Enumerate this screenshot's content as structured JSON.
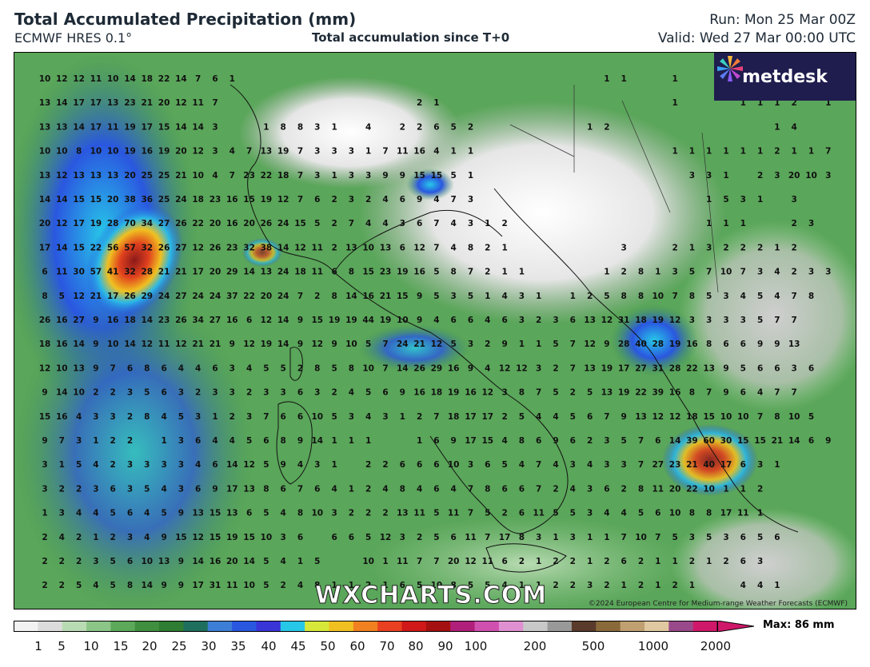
{
  "header": {
    "title": "Total Accumulated Precipitation (mm)",
    "model": "ECMWF HRES 0.1°",
    "subtitle": "Total accumulation since T+0",
    "run": "Run: Mon 25 Mar 00Z",
    "valid": "Valid: Wed 27 Mar 00:00 UTC"
  },
  "logo": {
    "text": "metdesk",
    "icon": "pinwheel-logo-icon"
  },
  "watermark": "WXCHARTS.COM",
  "copyright": "©2024 European Centre for Medium-range Weather Forecasts (ECMWF)",
  "colorbar": {
    "max_label": "Max: 86 mm",
    "ticks": [
      "1",
      "5",
      "10",
      "15",
      "20",
      "25",
      "30",
      "35",
      "40",
      "45",
      "50",
      "60",
      "70",
      "80",
      "90",
      "100",
      "200",
      "500",
      "1000",
      "2000"
    ],
    "colors": [
      "#f2f2f2",
      "#dcdcdc",
      "#b9dbb3",
      "#8cc588",
      "#5da95a",
      "#3f8f3f",
      "#2e7d32",
      "#1f6f5f",
      "#3d7fd6",
      "#2a57e0",
      "#3a35d8",
      "#27c7e8",
      "#d7e83a",
      "#f0c020",
      "#f08020",
      "#e84020",
      "#d01818",
      "#a51010",
      "#b0207a",
      "#d050b0",
      "#e090d0",
      "#c8c8c8",
      "#999999",
      "#5a3a2a",
      "#8a6a3a",
      "#c0a070",
      "#e0c8a0",
      "#9a4a8a",
      "#d0186a"
    ],
    "color_names": [
      "white",
      "light-grey",
      "light-green",
      "green",
      "mid-green",
      "dark-green",
      "teal",
      "blue",
      "deep-blue",
      "cyan",
      "yellow",
      "orange",
      "red",
      "dark-red",
      "magenta",
      "pink",
      "grey",
      "brown",
      "tan",
      "crimson"
    ]
  },
  "map": {
    "region": "Italy and the Balkans",
    "value_labels": [
      {
        "row": 1,
        "values": [
          "10",
          "12",
          "12",
          "11",
          "10",
          "14",
          "18",
          "22",
          "14",
          "7",
          "6",
          "1",
          "",
          "",
          "",
          "",
          "",
          "",
          "",
          "",
          "",
          "",
          "",
          "",
          "",
          "",
          "",
          "",
          "",
          "",
          "",
          "",
          "",
          "1",
          "1",
          "",
          "",
          "1"
        ]
      },
      {
        "row": 2,
        "values": [
          "13",
          "14",
          "17",
          "17",
          "13",
          "23",
          "21",
          "20",
          "12",
          "11",
          "7",
          "",
          "",
          "",
          "",
          "",
          "",
          "",
          "",
          "",
          "",
          "",
          "2",
          "1",
          "",
          "",
          "",
          "",
          "",
          "",
          "",
          "",
          "",
          "",
          "",
          "",
          "",
          "1",
          "",
          "",
          "",
          "1",
          "1",
          "1",
          "2",
          "",
          "1"
        ]
      },
      {
        "row": 3,
        "values": [
          "13",
          "13",
          "14",
          "17",
          "11",
          "19",
          "17",
          "15",
          "14",
          "14",
          "3",
          "",
          "",
          "1",
          "8",
          "8",
          "3",
          "1",
          "",
          "4",
          "",
          "2",
          "2",
          "6",
          "5",
          "2",
          "",
          "",
          "",
          "",
          "",
          "",
          "1",
          "2",
          "",
          "",
          "",
          "",
          "",
          "",
          "",
          "",
          "",
          "1",
          "4"
        ]
      },
      {
        "row": 4,
        "values": [
          "10",
          "10",
          "8",
          "10",
          "10",
          "19",
          "16",
          "19",
          "20",
          "12",
          "3",
          "4",
          "7",
          "13",
          "19",
          "7",
          "3",
          "3",
          "3",
          "1",
          "7",
          "11",
          "16",
          "4",
          "1",
          "1",
          "",
          "",
          "",
          "",
          "",
          "",
          "",
          "",
          "",
          "",
          "",
          "1",
          "1",
          "1",
          "1",
          "1",
          "1",
          "2",
          "1",
          "1",
          "7"
        ]
      },
      {
        "row": 5,
        "values": [
          "13",
          "12",
          "13",
          "13",
          "13",
          "20",
          "25",
          "25",
          "21",
          "10",
          "4",
          "7",
          "23",
          "22",
          "18",
          "7",
          "3",
          "1",
          "3",
          "3",
          "9",
          "9",
          "15",
          "15",
          "5",
          "1",
          "",
          "",
          "",
          "",
          "",
          "",
          "",
          "",
          "",
          "",
          "",
          "",
          "3",
          "3",
          "1",
          "",
          "2",
          "3",
          "20",
          "10",
          "3"
        ]
      },
      {
        "row": 6,
        "values": [
          "14",
          "14",
          "15",
          "15",
          "20",
          "38",
          "36",
          "25",
          "24",
          "18",
          "23",
          "16",
          "15",
          "19",
          "12",
          "7",
          "6",
          "2",
          "3",
          "2",
          "4",
          "6",
          "9",
          "4",
          "7",
          "3",
          "",
          "",
          "",
          "",
          "",
          "",
          "",
          "",
          "",
          "",
          "",
          "",
          "",
          "1",
          "5",
          "3",
          "1",
          "",
          "3"
        ]
      },
      {
        "row": 7,
        "values": [
          "20",
          "12",
          "17",
          "19",
          "28",
          "70",
          "34",
          "27",
          "26",
          "22",
          "20",
          "16",
          "20",
          "26",
          "24",
          "15",
          "5",
          "2",
          "7",
          "4",
          "4",
          "3",
          "6",
          "7",
          "4",
          "3",
          "1",
          "2",
          "",
          "",
          "",
          "",
          "",
          "",
          "",
          "",
          "",
          "",
          "",
          "1",
          "1",
          "1",
          "",
          "",
          "2",
          "3"
        ]
      },
      {
        "row": 8,
        "values": [
          "17",
          "14",
          "15",
          "22",
          "56",
          "57",
          "32",
          "26",
          "27",
          "12",
          "26",
          "23",
          "32",
          "38",
          "14",
          "12",
          "11",
          "2",
          "13",
          "10",
          "13",
          "6",
          "12",
          "7",
          "4",
          "8",
          "2",
          "1",
          "",
          "",
          "",
          "",
          "",
          "",
          "3",
          "",
          "",
          "2",
          "1",
          "3",
          "2",
          "2",
          "2",
          "1",
          "2"
        ]
      },
      {
        "row": 9,
        "values": [
          "6",
          "11",
          "30",
          "57",
          "41",
          "32",
          "28",
          "21",
          "21",
          "17",
          "20",
          "29",
          "14",
          "13",
          "24",
          "18",
          "11",
          "6",
          "8",
          "15",
          "23",
          "19",
          "16",
          "5",
          "8",
          "7",
          "2",
          "1",
          "1",
          "",
          "",
          "",
          "",
          "1",
          "2",
          "8",
          "1",
          "3",
          "5",
          "7",
          "10",
          "7",
          "3",
          "4",
          "2",
          "3",
          "3"
        ]
      },
      {
        "row": 10,
        "values": [
          "8",
          "5",
          "12",
          "21",
          "17",
          "26",
          "29",
          "24",
          "27",
          "24",
          "24",
          "37",
          "22",
          "20",
          "24",
          "7",
          "2",
          "8",
          "14",
          "16",
          "21",
          "15",
          "9",
          "5",
          "3",
          "5",
          "1",
          "4",
          "3",
          "1",
          "",
          "1",
          "2",
          "5",
          "8",
          "8",
          "10",
          "7",
          "8",
          "5",
          "3",
          "4",
          "5",
          "4",
          "7",
          "8"
        ]
      },
      {
        "row": 11,
        "values": [
          "26",
          "16",
          "27",
          "9",
          "16",
          "18",
          "14",
          "23",
          "26",
          "34",
          "27",
          "16",
          "6",
          "12",
          "14",
          "9",
          "15",
          "19",
          "19",
          "44",
          "19",
          "10",
          "9",
          "4",
          "6",
          "6",
          "4",
          "6",
          "3",
          "2",
          "3",
          "6",
          "13",
          "12",
          "31",
          "18",
          "19",
          "12",
          "3",
          "3",
          "3",
          "3",
          "5",
          "7",
          "7"
        ]
      },
      {
        "row": 12,
        "values": [
          "18",
          "16",
          "14",
          "9",
          "10",
          "14",
          "12",
          "11",
          "12",
          "21",
          "21",
          "9",
          "12",
          "19",
          "14",
          "9",
          "12",
          "9",
          "10",
          "5",
          "7",
          "24",
          "21",
          "12",
          "5",
          "3",
          "2",
          "9",
          "1",
          "1",
          "5",
          "7",
          "12",
          "9",
          "28",
          "40",
          "28",
          "19",
          "16",
          "8",
          "6",
          "6",
          "9",
          "9",
          "13"
        ]
      },
      {
        "row": 13,
        "values": [
          "12",
          "10",
          "13",
          "9",
          "7",
          "6",
          "8",
          "6",
          "4",
          "4",
          "6",
          "3",
          "4",
          "5",
          "5",
          "2",
          "8",
          "5",
          "8",
          "10",
          "7",
          "14",
          "26",
          "29",
          "16",
          "9",
          "4",
          "12",
          "12",
          "3",
          "2",
          "7",
          "13",
          "19",
          "17",
          "27",
          "31",
          "28",
          "22",
          "13",
          "9",
          "5",
          "6",
          "6",
          "3",
          "6"
        ]
      },
      {
        "row": 14,
        "values": [
          "9",
          "14",
          "10",
          "2",
          "2",
          "3",
          "5",
          "6",
          "3",
          "2",
          "3",
          "3",
          "2",
          "3",
          "3",
          "6",
          "3",
          "2",
          "4",
          "5",
          "6",
          "9",
          "16",
          "18",
          "19",
          "16",
          "12",
          "3",
          "8",
          "7",
          "5",
          "2",
          "5",
          "13",
          "19",
          "22",
          "39",
          "16",
          "8",
          "7",
          "9",
          "6",
          "4",
          "7",
          "7"
        ]
      },
      {
        "row": 15,
        "values": [
          "15",
          "16",
          "4",
          "3",
          "3",
          "2",
          "8",
          "4",
          "5",
          "3",
          "1",
          "2",
          "3",
          "7",
          "6",
          "6",
          "10",
          "5",
          "3",
          "4",
          "3",
          "1",
          "2",
          "7",
          "18",
          "17",
          "17",
          "2",
          "5",
          "4",
          "4",
          "5",
          "6",
          "7",
          "9",
          "13",
          "12",
          "12",
          "18",
          "15",
          "10",
          "10",
          "7",
          "8",
          "10",
          "5"
        ]
      },
      {
        "row": 16,
        "values": [
          "9",
          "7",
          "3",
          "1",
          "2",
          "2",
          "",
          "1",
          "3",
          "6",
          "4",
          "4",
          "5",
          "6",
          "8",
          "9",
          "14",
          "1",
          "1",
          "1",
          "",
          "",
          "1",
          "6",
          "9",
          "17",
          "15",
          "4",
          "8",
          "6",
          "9",
          "6",
          "2",
          "3",
          "5",
          "7",
          "6",
          "14",
          "39",
          "60",
          "30",
          "15",
          "15",
          "21",
          "14",
          "6",
          "9"
        ]
      },
      {
        "row": 17,
        "values": [
          "3",
          "1",
          "5",
          "4",
          "2",
          "3",
          "3",
          "3",
          "3",
          "4",
          "6",
          "14",
          "12",
          "5",
          "9",
          "4",
          "3",
          "1",
          "",
          "2",
          "2",
          "6",
          "6",
          "6",
          "10",
          "3",
          "6",
          "5",
          "4",
          "7",
          "4",
          "3",
          "4",
          "3",
          "3",
          "7",
          "27",
          "23",
          "21",
          "40",
          "17",
          "6",
          "3",
          "1"
        ]
      },
      {
        "row": 18,
        "values": [
          "3",
          "2",
          "2",
          "3",
          "6",
          "3",
          "5",
          "4",
          "3",
          "6",
          "9",
          "17",
          "13",
          "8",
          "6",
          "7",
          "6",
          "4",
          "1",
          "2",
          "4",
          "8",
          "4",
          "6",
          "4",
          "7",
          "8",
          "6",
          "6",
          "7",
          "2",
          "4",
          "3",
          "6",
          "2",
          "8",
          "11",
          "20",
          "22",
          "10",
          "1",
          "1",
          "2"
        ]
      },
      {
        "row": 19,
        "values": [
          "1",
          "3",
          "4",
          "4",
          "5",
          "6",
          "4",
          "5",
          "9",
          "13",
          "15",
          "13",
          "6",
          "5",
          "4",
          "8",
          "10",
          "3",
          "2",
          "2",
          "2",
          "13",
          "11",
          "5",
          "11",
          "7",
          "5",
          "2",
          "6",
          "11",
          "5",
          "5",
          "3",
          "4",
          "4",
          "5",
          "6",
          "10",
          "8",
          "8",
          "17",
          "11",
          "1"
        ]
      },
      {
        "row": 20,
        "values": [
          "2",
          "4",
          "2",
          "1",
          "2",
          "3",
          "4",
          "9",
          "15",
          "12",
          "15",
          "19",
          "15",
          "10",
          "3",
          "6",
          "",
          "6",
          "6",
          "5",
          "12",
          "3",
          "2",
          "5",
          "6",
          "11",
          "7",
          "17",
          "8",
          "3",
          "1",
          "3",
          "1",
          "1",
          "7",
          "10",
          "7",
          "5",
          "3",
          "5",
          "3",
          "6",
          "5",
          "6"
        ]
      },
      {
        "row": 21,
        "values": [
          "2",
          "2",
          "2",
          "3",
          "5",
          "6",
          "10",
          "13",
          "9",
          "14",
          "16",
          "20",
          "14",
          "5",
          "4",
          "1",
          "5",
          "",
          "",
          "10",
          "1",
          "11",
          "7",
          "7",
          "20",
          "12",
          "11",
          "6",
          "2",
          "1",
          "2",
          "2",
          "1",
          "2",
          "6",
          "2",
          "1",
          "1",
          "2",
          "1",
          "2",
          "6",
          "3"
        ]
      },
      {
        "row": 22,
        "values": [
          "2",
          "2",
          "5",
          "4",
          "5",
          "8",
          "14",
          "9",
          "9",
          "17",
          "31",
          "11",
          "10",
          "5",
          "2",
          "4",
          "8",
          "1",
          "1",
          "2",
          "1",
          "6",
          "5",
          "10",
          "8",
          "5",
          "5",
          "4",
          "1",
          "1",
          "2",
          "2",
          "3",
          "2",
          "1",
          "2",
          "1",
          "2",
          "1",
          "",
          "",
          "4",
          "4",
          "1"
        ]
      }
    ]
  }
}
